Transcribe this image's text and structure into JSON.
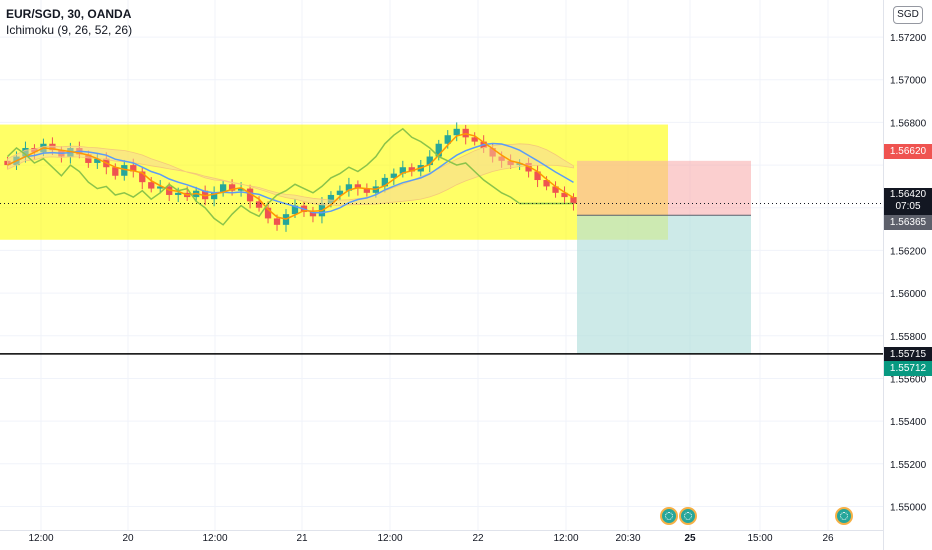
{
  "legend": {
    "symbol": "EUR/SGD, 30, OANDA",
    "indicator": "Ichimoku (9, 26, 52, 26)"
  },
  "currency": "SGD",
  "price_tags": {
    "target": "1.56620",
    "current_price": "1.56420",
    "countdown": "07:05",
    "entry": "1.56365",
    "hline": "1.55715",
    "stop": "1.55712"
  },
  "colors": {
    "up": "#26a69a",
    "down": "#ef5350",
    "tenkan": "#ff9800",
    "kijun": "#5b9cf6",
    "chikou": "#8bc34a",
    "highlight": "#ffff00",
    "target_zone": "#f7a8a8",
    "stop_zone": "#b2dfdb"
  },
  "chart_data": {
    "type": "candlestick",
    "title": "EUR/SGD, 30, OANDA",
    "y_range": [
      1.5496,
      1.5728
    ],
    "y_ticks": [
      "1.57200",
      "1.57000",
      "1.56800",
      "1.56620",
      "1.56420",
      "1.56365",
      "1.56200",
      "1.56000",
      "1.55800",
      "1.55715",
      "1.55712",
      "1.55600",
      "1.55400",
      "1.55200",
      "1.55000"
    ],
    "x_ticks": [
      "12:00",
      "20",
      "12:00",
      "21",
      "12:00",
      "22",
      "12:00",
      "20:30",
      "25",
      "15:00",
      "26"
    ],
    "indicators": [
      "Ichimoku (9, 26, 52, 26)"
    ],
    "horizontal_line": 1.55715,
    "highlight_zone": [
      1.5625,
      1.5679
    ],
    "position": {
      "entry": 1.56365,
      "target": 1.5662,
      "stop": 1.55712
    },
    "last_price": 1.5642,
    "close_series": [
      1.566,
      1.5664,
      1.5668,
      1.5666,
      1.567,
      1.5667,
      1.5664,
      1.5668,
      1.5665,
      1.5661,
      1.5663,
      1.5659,
      1.5655,
      1.566,
      1.5657,
      1.5652,
      1.5649,
      1.565,
      1.5646,
      1.5647,
      1.5645,
      1.5648,
      1.5644,
      1.5647,
      1.5651,
      1.5648,
      1.5649,
      1.5643,
      1.564,
      1.5635,
      1.5632,
      1.5637,
      1.5641,
      1.5638,
      1.5636,
      1.5642,
      1.5646,
      1.5648,
      1.5651,
      1.5649,
      1.5647,
      1.565,
      1.5654,
      1.5656,
      1.5659,
      1.5657,
      1.566,
      1.5664,
      1.567,
      1.5674,
      1.5677,
      1.5673,
      1.5671,
      1.5668,
      1.5664,
      1.5662,
      1.566,
      1.5661,
      1.5657,
      1.5653,
      1.565,
      1.5647,
      1.5645,
      1.5642
    ]
  }
}
